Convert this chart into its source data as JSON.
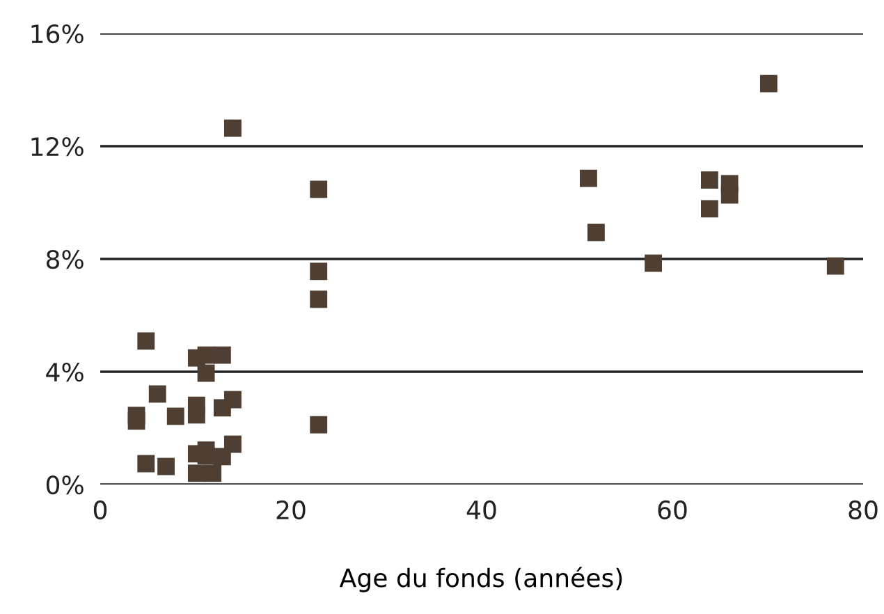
{
  "chart_data": {
    "type": "scatter",
    "xlabel": "Age du fonds (années)",
    "x": [
      13.9,
      22.9,
      22.9,
      22.9,
      22.9,
      4.8,
      10.1,
      11.1,
      12.8,
      11.1,
      6.0,
      13.9,
      3.8,
      3.8,
      7.9,
      10.1,
      10.1,
      12.8,
      13.9,
      10.1,
      11.1,
      11.1,
      12.8,
      4.8,
      6.9,
      10.1,
      11.8,
      70.1,
      51.2,
      63.9,
      66.0,
      66.0,
      63.9,
      52.0,
      58.0,
      77.1
    ],
    "values": [
      12.64,
      10.47,
      7.56,
      6.57,
      2.12,
      5.09,
      4.49,
      4.59,
      4.59,
      3.95,
      3.21,
      3.01,
      2.45,
      2.25,
      2.42,
      2.81,
      2.47,
      2.72,
      1.43,
      1.09,
      1.22,
      1.02,
      0.99,
      0.74,
      0.64,
      0.4,
      0.4,
      14.22,
      10.86,
      10.8,
      10.67,
      10.27,
      9.78,
      8.94,
      7.85,
      7.75
    ],
    "color": "#4f3f33",
    "marker": "square",
    "grid": "y",
    "xlim": [
      0,
      80
    ],
    "xticks": [
      0,
      20,
      40,
      60,
      80
    ],
    "ylim": [
      0,
      16
    ],
    "yticks": [
      {
        "value": 0,
        "label": "0%"
      },
      {
        "value": 4,
        "label": "4%"
      },
      {
        "value": 8,
        "label": "8%"
      },
      {
        "value": 12,
        "label": "12%"
      },
      {
        "value": 16,
        "label": "16%"
      }
    ]
  }
}
